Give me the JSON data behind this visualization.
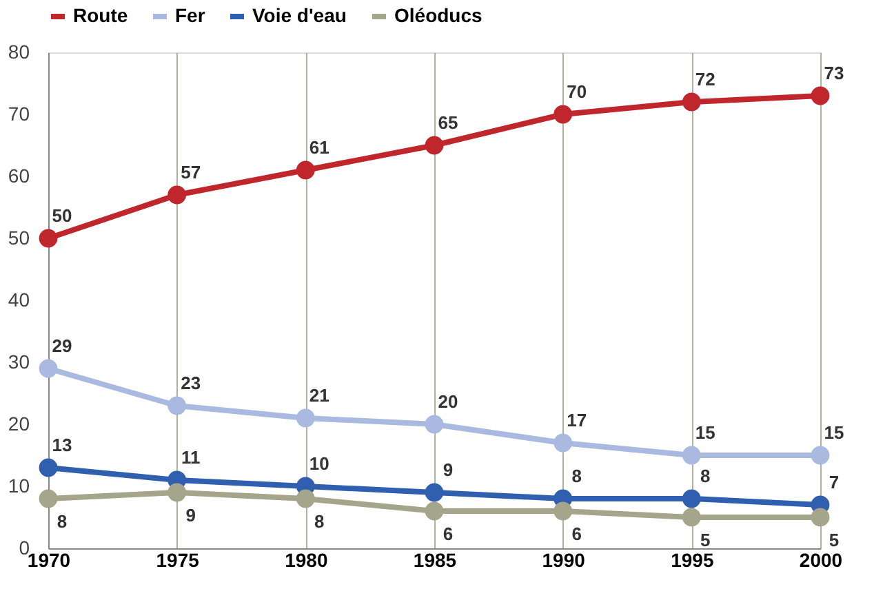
{
  "chart_data": {
    "type": "line",
    "x": [
      1970,
      1975,
      1980,
      1985,
      1990,
      1995,
      2000
    ],
    "series": [
      {
        "name": "Route",
        "color": "#c0272d",
        "values": [
          50,
          57,
          61,
          65,
          70,
          72,
          73
        ]
      },
      {
        "name": "Fer",
        "color": "#a9b9e0",
        "values": [
          29,
          23,
          21,
          20,
          17,
          15,
          15
        ]
      },
      {
        "name": "Voie d'eau",
        "color": "#2f5fae",
        "values": [
          13,
          11,
          10,
          9,
          8,
          8,
          7
        ]
      },
      {
        "name": "Oléoducs",
        "color": "#a5a58c",
        "values": [
          8,
          9,
          8,
          6,
          6,
          5,
          5
        ]
      }
    ],
    "xlim": [
      1970,
      2000
    ],
    "xticks": [
      1970,
      1975,
      1980,
      1985,
      1990,
      1995,
      2000
    ],
    "ylim": [
      0,
      80
    ],
    "yticks": [
      0,
      10,
      20,
      30,
      40,
      50,
      60,
      70,
      80
    ],
    "grid": "x",
    "legend": "top",
    "marker": "circle",
    "line_style": "solid",
    "data_labels": true
  }
}
